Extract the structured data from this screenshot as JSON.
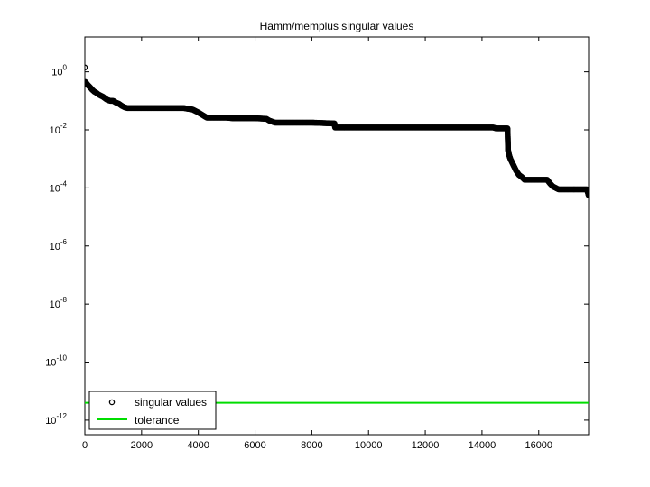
{
  "chart_data": {
    "type": "scatter",
    "title": "Hamm/memplus singular values",
    "xlabel": "",
    "ylabel": "",
    "yscale": "log",
    "xlim": [
      0,
      17758
    ],
    "ylim_exp": [
      -12.5,
      1.2
    ],
    "x_ticks": [
      0,
      2000,
      4000,
      6000,
      8000,
      10000,
      12000,
      14000,
      16000
    ],
    "y_tick_exponents": [
      0,
      -2,
      -4,
      -6,
      -8,
      -10,
      -12
    ],
    "y_tick_base": "10",
    "grid": false,
    "legend_position": "bottom-left",
    "series": [
      {
        "name": "singular values",
        "marker": "circle",
        "color": "#000000",
        "points_log10": [
          [
            1,
            0.15
          ],
          [
            20,
            -0.35
          ],
          [
            60,
            -0.4
          ],
          [
            100,
            -0.45
          ],
          [
            150,
            -0.5
          ],
          [
            200,
            -0.55
          ],
          [
            260,
            -0.62
          ],
          [
            330,
            -0.68
          ],
          [
            400,
            -0.72
          ],
          [
            480,
            -0.78
          ],
          [
            560,
            -0.82
          ],
          [
            640,
            -0.86
          ],
          [
            720,
            -0.92
          ],
          [
            800,
            -0.97
          ],
          [
            900,
            -1.0
          ],
          [
            1000,
            -1.0
          ],
          [
            1100,
            -1.06
          ],
          [
            1200,
            -1.1
          ],
          [
            1300,
            -1.17
          ],
          [
            1400,
            -1.22
          ],
          [
            1500,
            -1.25
          ],
          [
            2000,
            -1.25
          ],
          [
            2500,
            -1.25
          ],
          [
            3000,
            -1.25
          ],
          [
            3500,
            -1.25
          ],
          [
            3600,
            -1.27
          ],
          [
            3800,
            -1.3
          ],
          [
            4000,
            -1.4
          ],
          [
            4200,
            -1.52
          ],
          [
            4300,
            -1.58
          ],
          [
            4500,
            -1.58
          ],
          [
            5000,
            -1.58
          ],
          [
            5200,
            -1.6
          ],
          [
            5500,
            -1.6
          ],
          [
            6000,
            -1.6
          ],
          [
            6400,
            -1.62
          ],
          [
            6500,
            -1.68
          ],
          [
            6700,
            -1.75
          ],
          [
            7000,
            -1.75
          ],
          [
            7500,
            -1.75
          ],
          [
            8000,
            -1.75
          ],
          [
            8800,
            -1.78
          ],
          [
            8820,
            -1.92
          ],
          [
            9500,
            -1.92
          ],
          [
            10000,
            -1.92
          ],
          [
            11000,
            -1.92
          ],
          [
            12000,
            -1.92
          ],
          [
            13000,
            -1.92
          ],
          [
            14000,
            -1.92
          ],
          [
            14400,
            -1.92
          ],
          [
            14500,
            -1.95
          ],
          [
            14900,
            -1.95
          ],
          [
            14920,
            -2.7
          ],
          [
            14950,
            -2.85
          ],
          [
            15000,
            -3.0
          ],
          [
            15100,
            -3.2
          ],
          [
            15200,
            -3.4
          ],
          [
            15300,
            -3.55
          ],
          [
            15400,
            -3.62
          ],
          [
            15500,
            -3.72
          ],
          [
            15600,
            -3.72
          ],
          [
            16000,
            -3.72
          ],
          [
            16300,
            -3.72
          ],
          [
            16400,
            -3.85
          ],
          [
            16500,
            -3.95
          ],
          [
            16700,
            -4.05
          ],
          [
            17000,
            -4.05
          ],
          [
            17700,
            -4.05
          ],
          [
            17740,
            -4.18
          ],
          [
            17758,
            -4.25
          ]
        ]
      },
      {
        "name": "tolerance",
        "type": "line",
        "color": "#00dd00",
        "log10_value": -11.4,
        "x_range": [
          0,
          17758
        ]
      }
    ]
  }
}
